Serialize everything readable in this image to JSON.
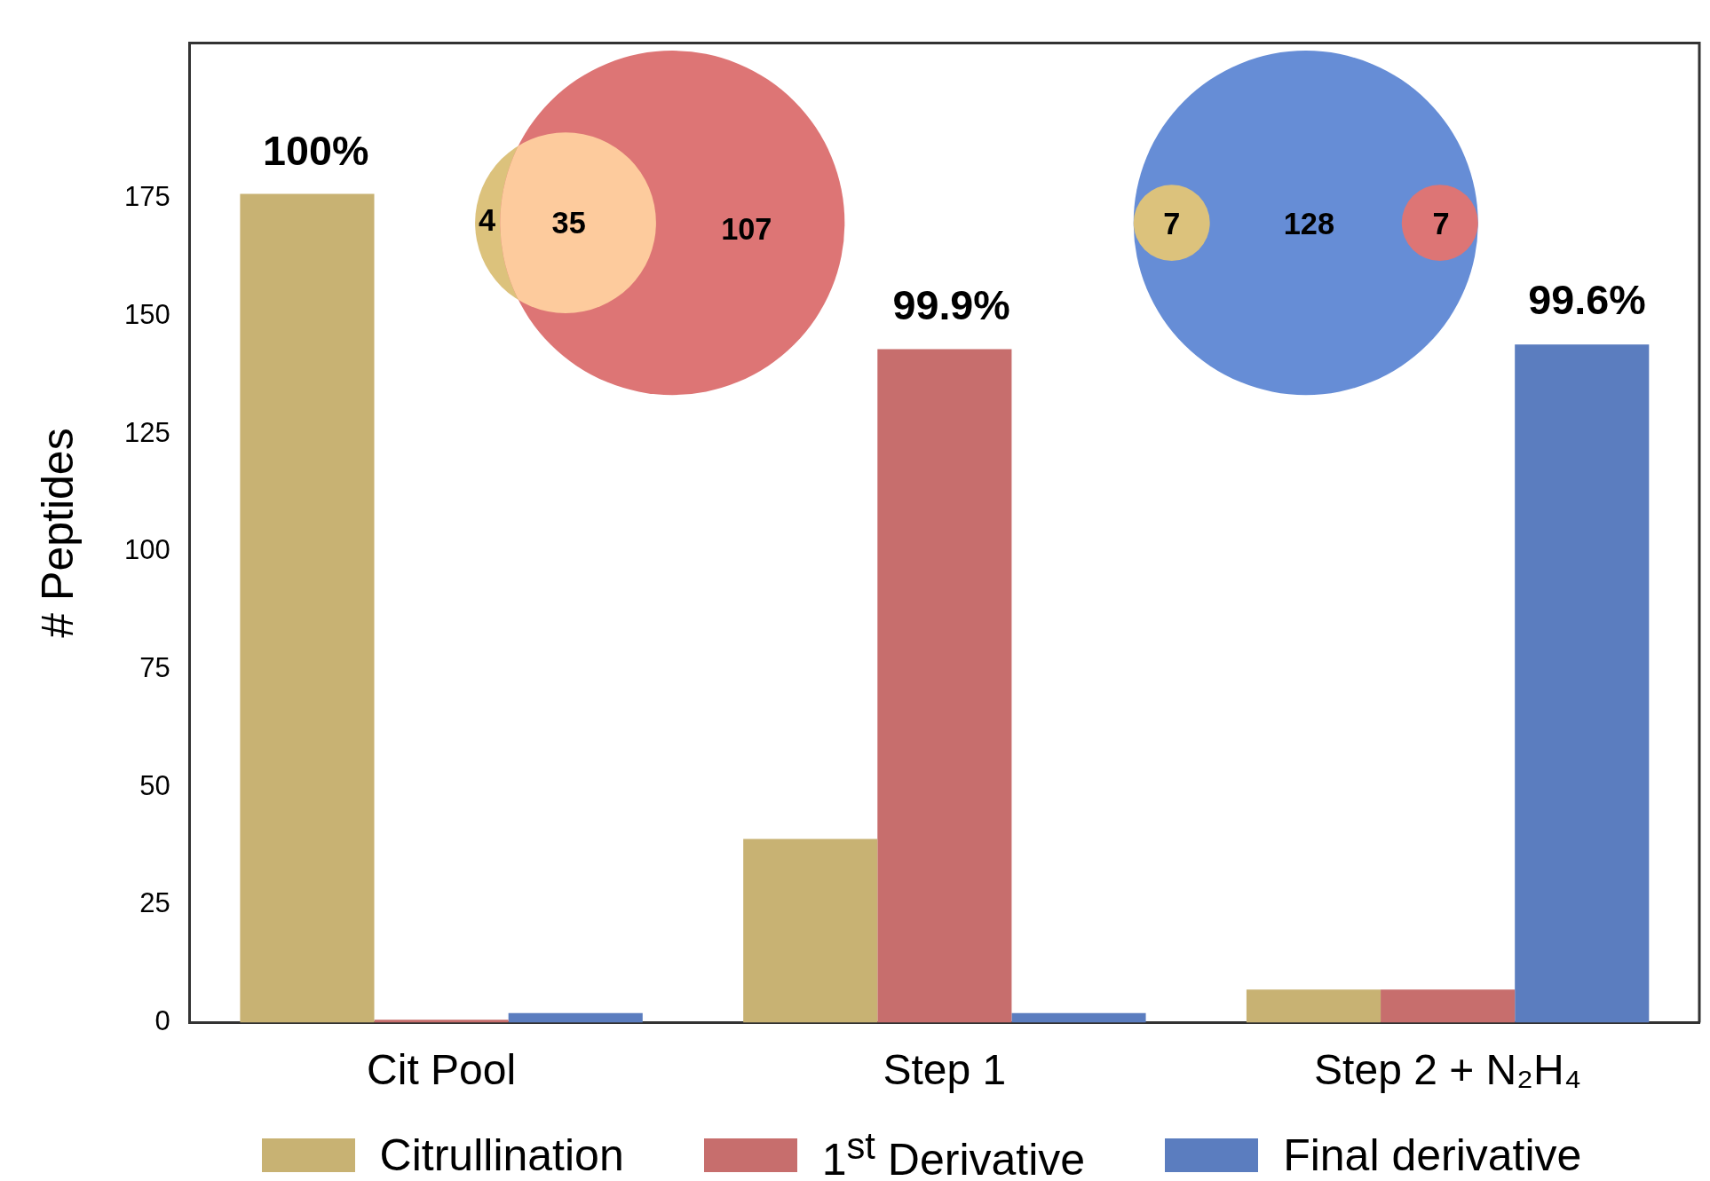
{
  "chart_data": {
    "type": "bar",
    "ylabel": "# Peptides",
    "categories": [
      "Cit Pool",
      "Step 1",
      "Step 2 + N₂H₄"
    ],
    "series": [
      {
        "name": "Citrullination",
        "color": "#c8b273",
        "values": [
          176,
          39,
          7
        ]
      },
      {
        "name": "1$^{st}$ Derivative",
        "color": "#c76e6d",
        "values": [
          0.6,
          143,
          7
        ]
      },
      {
        "name": "Final derivative",
        "color": "#5b7dbf",
        "values": [
          2,
          2,
          144
        ]
      }
    ],
    "ylim": [
      0,
      208
    ],
    "yticks": [
      0,
      25,
      50,
      75,
      100,
      125,
      150,
      175
    ],
    "grid": false,
    "legend": "bottom",
    "annotations": [
      "100%",
      "99.9%",
      "99.6%",
      "4",
      "35",
      "107",
      "7",
      "128",
      "7"
    ]
  }
}
